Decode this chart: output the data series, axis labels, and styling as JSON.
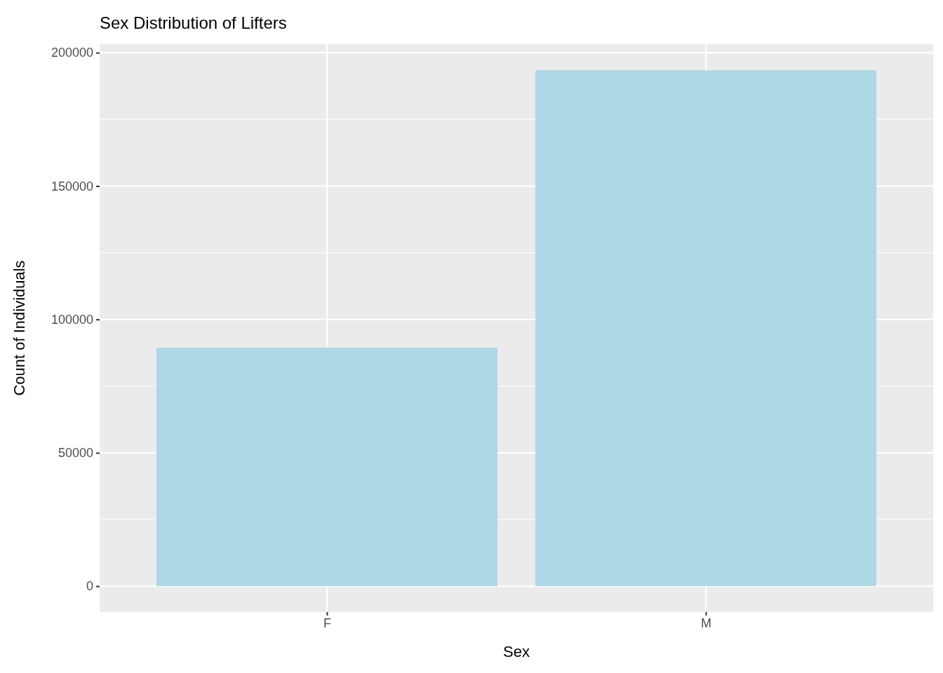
{
  "chart_data": {
    "type": "bar",
    "title": "Sex Distribution of Lifters",
    "xlabel": "Sex",
    "ylabel": "Count of Individuals",
    "categories": [
      "F",
      "M"
    ],
    "values": [
      89400,
      193400
    ],
    "color": "#add8e6",
    "ylim": [
      -9700,
      203200
    ],
    "yticks": [
      0,
      50000,
      100000,
      150000,
      200000
    ],
    "grid": true
  }
}
